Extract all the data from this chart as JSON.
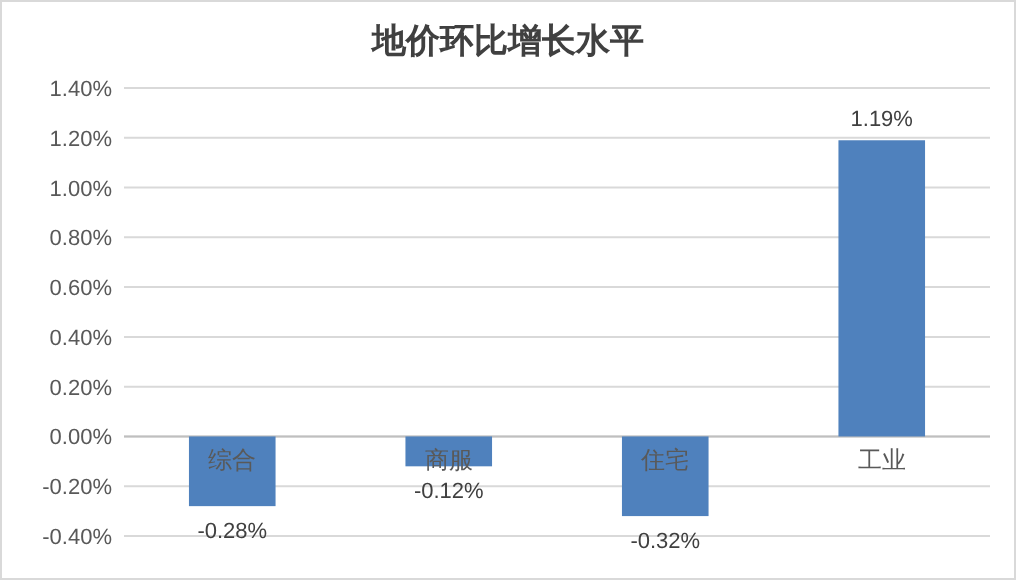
{
  "chart_data": {
    "type": "bar",
    "title": "地价环比增长水平",
    "categories": [
      "综合",
      "商服",
      "住宅",
      "工业"
    ],
    "values": [
      -0.28,
      -0.12,
      -0.32,
      1.19
    ],
    "color": "#4f81bd",
    "value_labels": [
      "-0.28%",
      "-0.12%",
      "-0.32%",
      "1.19%"
    ],
    "ylim": [
      -0.4,
      1.4
    ],
    "yticks": [
      {
        "value": -0.4,
        "label": "-0.40%"
      },
      {
        "value": -0.2,
        "label": "-0.20%"
      },
      {
        "value": 0,
        "label": "0.00%"
      },
      {
        "value": 0.2,
        "label": "0.20%"
      },
      {
        "value": 0.4,
        "label": "0.40%"
      },
      {
        "value": 0.6,
        "label": "0.60%"
      },
      {
        "value": 0.8,
        "label": "0.80%"
      },
      {
        "value": 1.0,
        "label": "1.00%"
      },
      {
        "value": 1.2,
        "label": "1.20%"
      },
      {
        "value": 1.4,
        "label": "1.40%"
      }
    ],
    "grid": true
  }
}
